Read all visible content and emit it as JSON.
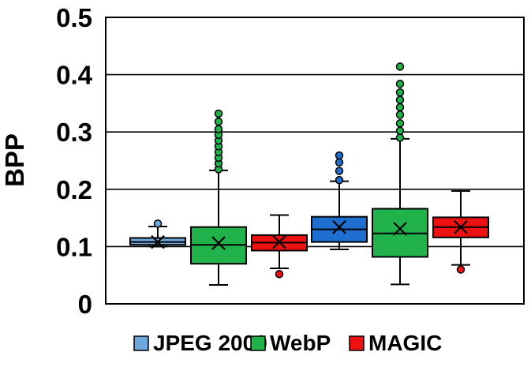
{
  "chart_data": {
    "type": "box",
    "title": "",
    "xlabel": "",
    "ylabel": "BPP",
    "ylim": [
      0,
      0.5
    ],
    "yticks": [
      0,
      0.1,
      0.2,
      0.3,
      0.4,
      0.5
    ],
    "ytick_labels": [
      "0",
      "0.1",
      "0.2",
      "0.3",
      "0.4",
      "0.5"
    ],
    "grid": "horizontal",
    "legend_position": "bottom",
    "series": [
      {
        "name": "JPEG 2000",
        "color": "#6fa8dc"
      },
      {
        "name": "WebP",
        "color": "#21b24c"
      },
      {
        "name": "MAGIC",
        "color": "#ee1111"
      }
    ],
    "groups": [
      {
        "boxes": [
          {
            "series": 0,
            "color": "#6fa8dc",
            "whisker_low": 0.1,
            "q1": 0.103,
            "median": 0.108,
            "q3": 0.115,
            "whisker_high": 0.135,
            "mean": 0.108,
            "outliers": [
              0.14
            ]
          },
          {
            "series": 1,
            "color": "#21b24c",
            "whisker_low": 0.033,
            "q1": 0.07,
            "median": 0.103,
            "q3": 0.134,
            "whisker_high": 0.233,
            "mean": 0.106,
            "outliers": [
              0.235,
              0.245,
              0.255,
              0.265,
              0.275,
              0.285,
              0.295,
              0.305,
              0.318,
              0.332
            ]
          },
          {
            "series": 2,
            "color": "#ee1111",
            "whisker_low": 0.062,
            "q1": 0.093,
            "median": 0.107,
            "q3": 0.12,
            "whisker_high": 0.155,
            "mean": 0.108,
            "outliers": [
              0.052
            ]
          }
        ]
      },
      {
        "boxes": [
          {
            "series": 0,
            "color": "#1f6fd1",
            "whisker_low": 0.095,
            "q1": 0.108,
            "median": 0.13,
            "q3": 0.152,
            "whisker_high": 0.214,
            "mean": 0.134,
            "outliers": [
              0.216,
              0.232,
              0.247,
              0.259
            ]
          },
          {
            "series": 1,
            "color": "#21b24c",
            "whisker_low": 0.034,
            "q1": 0.082,
            "median": 0.123,
            "q3": 0.166,
            "whisker_high": 0.288,
            "mean": 0.131,
            "outliers": [
              0.29,
              0.302,
              0.315,
              0.33,
              0.343,
              0.356,
              0.369,
              0.384,
              0.414
            ]
          },
          {
            "series": 2,
            "color": "#ee1111",
            "whisker_low": 0.068,
            "q1": 0.116,
            "median": 0.134,
            "q3": 0.151,
            "whisker_high": 0.197,
            "mean": 0.134,
            "outliers": [
              0.06
            ]
          }
        ]
      }
    ]
  }
}
